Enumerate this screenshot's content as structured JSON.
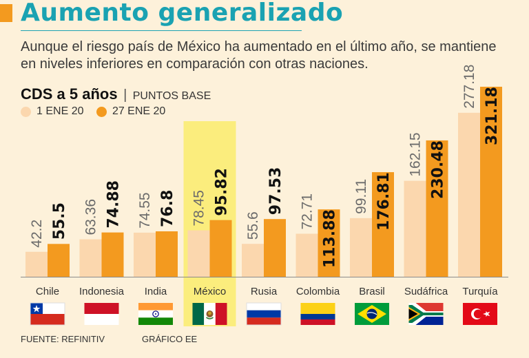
{
  "header": {
    "title": "Aumento generalizado",
    "subtitle": "Aunque el riesgo país de México  ha aumentado en el último año, se mantiene en niveles inferiores en comparación con otras naciones."
  },
  "chart_heading": {
    "title": "CDS a 5 años",
    "separator": "|",
    "unit": "PUNTOS BASE"
  },
  "chart_data": {
    "type": "bar",
    "title": "CDS a 5 años",
    "unit": "PUNTOS BASE",
    "categories": [
      "Chile",
      "Indonesia",
      "India",
      "México",
      "Rusia",
      "Colombia",
      "Brasil",
      "Sudáfrica",
      "Turquía"
    ],
    "series": [
      {
        "name": "1 ENE 20",
        "color": "#fbd7ae",
        "values": [
          42.2,
          63.36,
          74.55,
          78.45,
          55.6,
          72.71,
          99.11,
          162.15,
          277.18
        ]
      },
      {
        "name": "27 ENE 20",
        "color": "#f39a1f",
        "values": [
          55.5,
          74.88,
          76.8,
          95.82,
          97.53,
          113.88,
          176.81,
          230.48,
          321.18
        ]
      }
    ],
    "value_labels": {
      "1 ENE 20": [
        "42.2",
        "63.36",
        "74.55",
        "78.45",
        "55.6",
        "72.71",
        "99.11",
        "162.15",
        "277.18"
      ],
      "27 ENE 20": [
        "55.5",
        "74.88",
        "76.8",
        "95.82",
        "97.53",
        "113.88",
        "176.81",
        "230.48",
        "321.18"
      ]
    },
    "ylim": [
      0,
      321.18
    ],
    "highlight_category": "México",
    "highlight_color": "#fbed7d",
    "grid": false,
    "legend_position": "top-left"
  },
  "flags": [
    "chile-flag-icon",
    "indonesia-flag-icon",
    "india-flag-icon",
    "mexico-flag-icon",
    "russia-flag-icon",
    "colombia-flag-icon",
    "brazil-flag-icon",
    "south-africa-flag-icon",
    "turkey-flag-icon"
  ],
  "footer": {
    "source": "FUENTE: REFINITIV",
    "credit": "GRÁFICO EE"
  },
  "colors": {
    "background": "#fdf1da",
    "accent": "#f39a1f",
    "title": "#1aa2b2",
    "series_old": "#fbd7ae",
    "series_new": "#f39a1f",
    "highlight": "#fbed7d"
  }
}
